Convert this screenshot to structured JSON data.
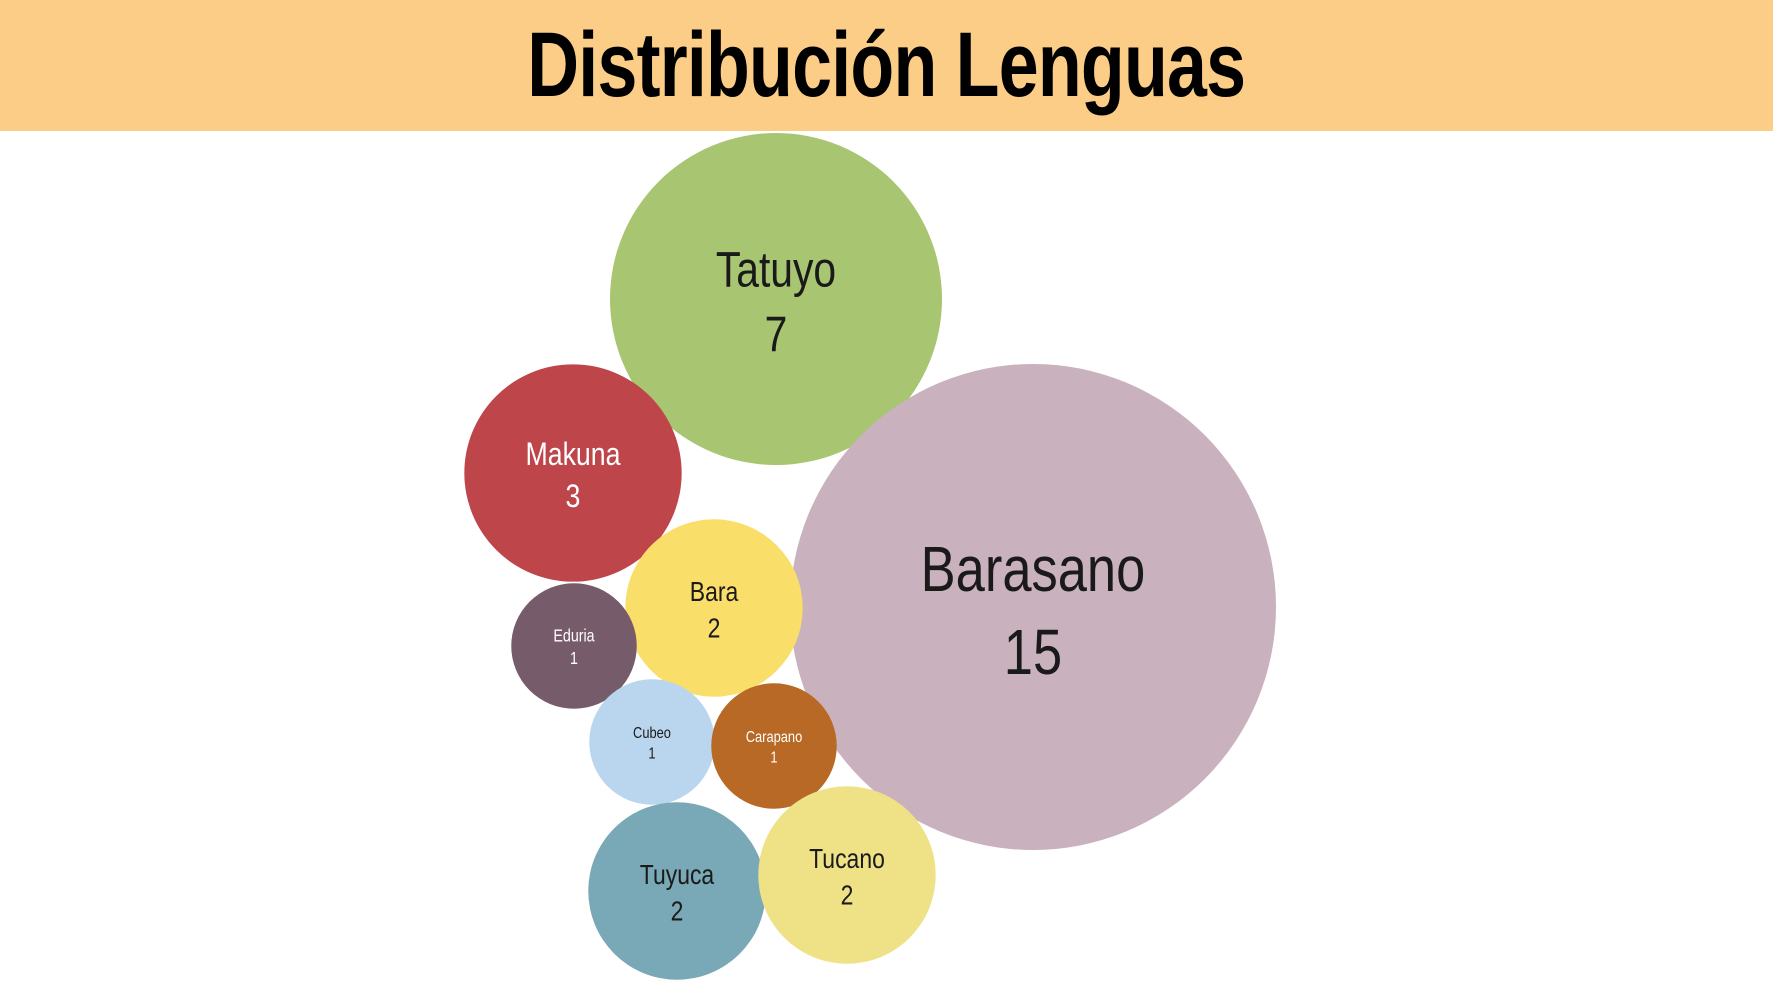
{
  "title": "Distribución Lenguas",
  "colors": {
    "title_bar": "#fbcd86",
    "title_text": "#000000"
  },
  "chart_data": {
    "type": "bubble",
    "title": "Distribución Lenguas",
    "series": [
      {
        "name": "Tatuyo",
        "value": 7,
        "color": "#a8c571",
        "text_color": "#1a1a1a"
      },
      {
        "name": "Barasano",
        "value": 15,
        "color": "#c9b1bd",
        "text_color": "#1a1a1a"
      },
      {
        "name": "Makuna",
        "value": 3,
        "color": "#be4549",
        "text_color": "#ffffff"
      },
      {
        "name": "Bara",
        "value": 2,
        "color": "#fade6a",
        "text_color": "#1a1a1a"
      },
      {
        "name": "Eduria",
        "value": 1,
        "color": "#765b6b",
        "text_color": "#ffffff"
      },
      {
        "name": "Cubeo",
        "value": 1,
        "color": "#bad6ef",
        "text_color": "#1a1a1a"
      },
      {
        "name": "Carapano",
        "value": 1,
        "color": "#b86925",
        "text_color": "#ffffff"
      },
      {
        "name": "Tuyuca",
        "value": 2,
        "color": "#79a8b6",
        "text_color": "#1a1a1a"
      },
      {
        "name": "Tucano",
        "value": 2,
        "color": "#efe286",
        "text_color": "#1a1a1a"
      }
    ]
  }
}
